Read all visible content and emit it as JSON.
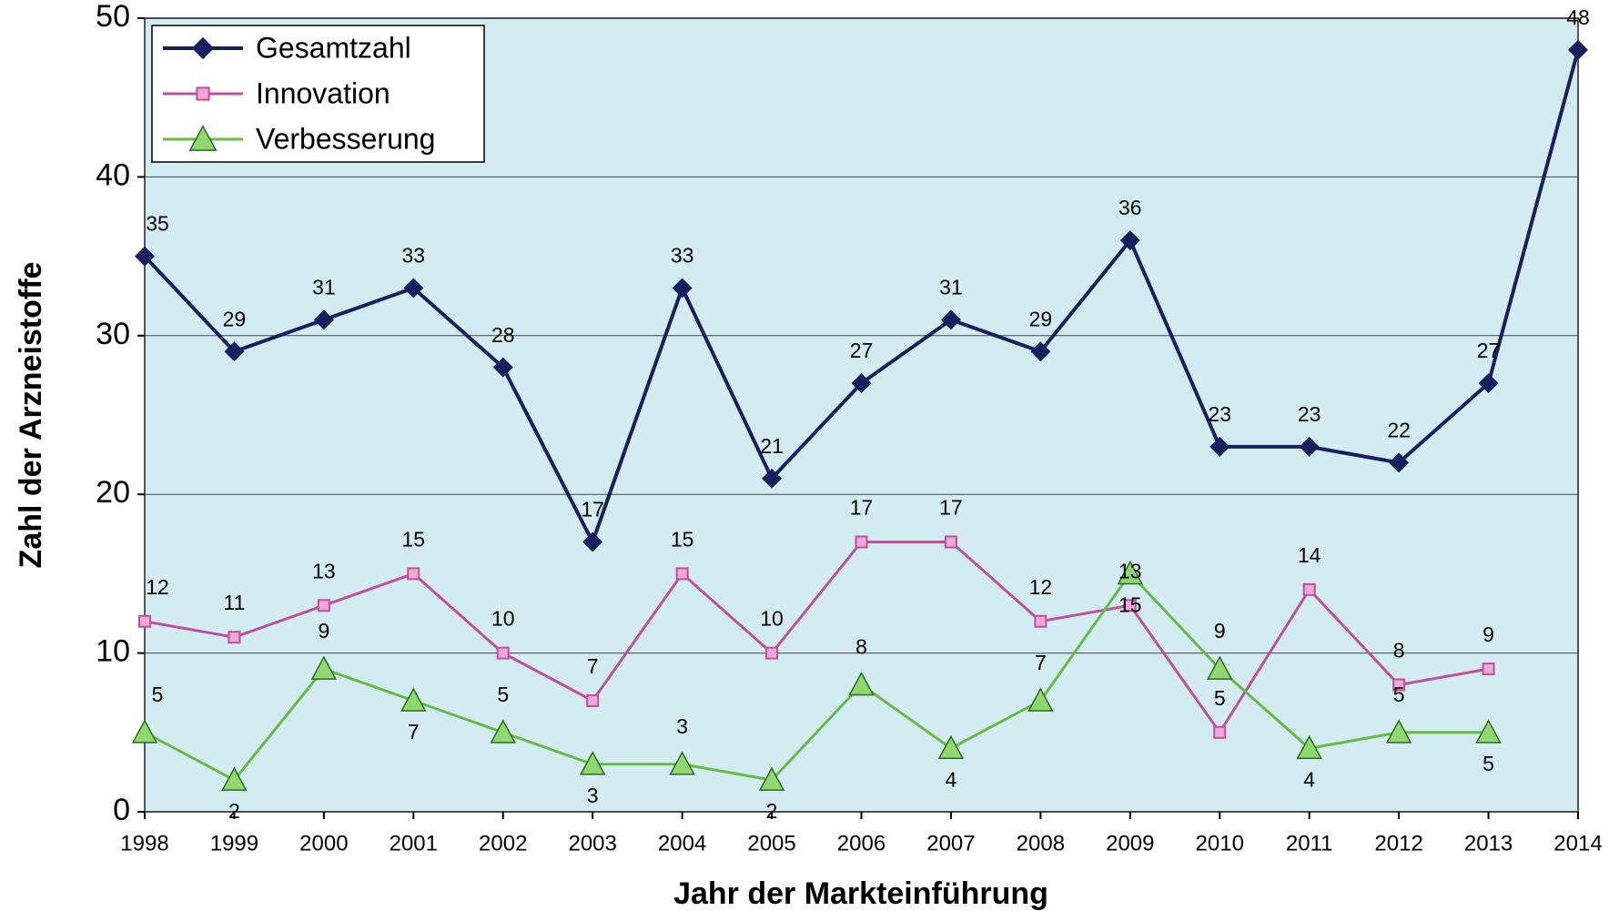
{
  "chart_data": {
    "type": "line",
    "xlabel": "Jahr der Markteinführung",
    "ylabel": "Zahl der Arzneistoffe",
    "categories": [
      "1998",
      "1999",
      "2000",
      "2001",
      "2002",
      "2003",
      "2004",
      "2005",
      "2006",
      "2007",
      "2008",
      "2009",
      "2010",
      "2011",
      "2012",
      "2013",
      "2014"
    ],
    "series": [
      {
        "name": "Gesamtzahl",
        "color": "#17205e",
        "marker": "diamond",
        "values": [
          35,
          29,
          31,
          33,
          28,
          17,
          33,
          21,
          27,
          31,
          29,
          36,
          23,
          23,
          22,
          27,
          48
        ]
      },
      {
        "name": "Innovation",
        "color": "#c04f9d",
        "marker": "square",
        "values": [
          12,
          11,
          13,
          15,
          10,
          7,
          15,
          10,
          17,
          17,
          12,
          13,
          5,
          14,
          8,
          9,
          null
        ]
      },
      {
        "name": "Verbesserung",
        "color": "#66bb44",
        "marker": "triangle",
        "values": [
          5,
          2,
          9,
          7,
          5,
          3,
          3,
          2,
          8,
          4,
          7,
          15,
          9,
          4,
          5,
          5,
          null
        ]
      }
    ],
    "ylim": [
      0,
      50
    ],
    "yticks": [
      0,
      10,
      20,
      30,
      40,
      50
    ],
    "grid": true,
    "legend": "upper left"
  }
}
